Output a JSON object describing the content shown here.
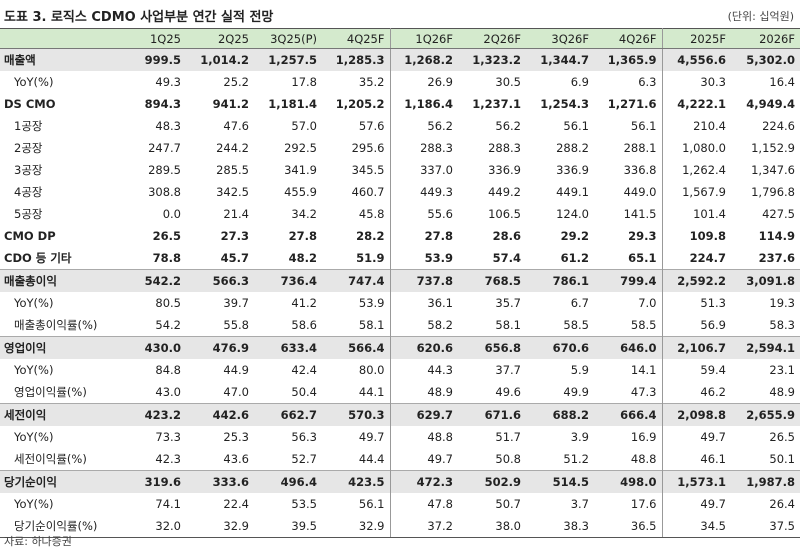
{
  "header": {
    "title": "도표 3. 로직스 CDMO 사업부분 연간 실적 전망",
    "unit": "(단위: 십억원)"
  },
  "table": {
    "columns": [
      "1Q25",
      "2Q25",
      "3Q25(P)",
      "4Q25F",
      "1Q26F",
      "2Q26F",
      "3Q26F",
      "4Q26F",
      "2025F",
      "2026F"
    ],
    "shaded_rows": [
      0,
      10,
      13,
      16,
      19
    ],
    "indented_rows": [
      1,
      3,
      4,
      5,
      6,
      7,
      11,
      12,
      14,
      15,
      17,
      18,
      20,
      21
    ],
    "rows": [
      {
        "label": "매출액",
        "values": [
          "999.5",
          "1,014.2",
          "1,257.5",
          "1,285.3",
          "1,268.2",
          "1,323.2",
          "1,344.7",
          "1,365.9",
          "4,556.6",
          "5,302.0"
        ]
      },
      {
        "label": "YoY(%)",
        "values": [
          "49.3",
          "25.2",
          "17.8",
          "35.2",
          "26.9",
          "30.5",
          "6.9",
          "6.3",
          "30.3",
          "16.4"
        ]
      },
      {
        "label": "DS CMO",
        "values": [
          "894.3",
          "941.2",
          "1,181.4",
          "1,205.2",
          "1,186.4",
          "1,237.1",
          "1,254.3",
          "1,271.6",
          "4,222.1",
          "4,949.4"
        ]
      },
      {
        "label": "1공장",
        "values": [
          "48.3",
          "47.6",
          "57.0",
          "57.6",
          "56.2",
          "56.2",
          "56.1",
          "56.1",
          "210.4",
          "224.6"
        ]
      },
      {
        "label": "2공장",
        "values": [
          "247.7",
          "244.2",
          "292.5",
          "295.6",
          "288.3",
          "288.3",
          "288.2",
          "288.1",
          "1,080.0",
          "1,152.9"
        ]
      },
      {
        "label": "3공장",
        "values": [
          "289.5",
          "285.5",
          "341.9",
          "345.5",
          "337.0",
          "336.9",
          "336.9",
          "336.8",
          "1,262.4",
          "1,347.6"
        ]
      },
      {
        "label": "4공장",
        "values": [
          "308.8",
          "342.5",
          "455.9",
          "460.7",
          "449.3",
          "449.2",
          "449.1",
          "449.0",
          "1,567.9",
          "1,796.8"
        ]
      },
      {
        "label": "5공장",
        "values": [
          "0.0",
          "21.4",
          "34.2",
          "45.8",
          "55.6",
          "106.5",
          "124.0",
          "141.5",
          "101.4",
          "427.5"
        ]
      },
      {
        "label": "CMO DP",
        "values": [
          "26.5",
          "27.3",
          "27.8",
          "28.2",
          "27.8",
          "28.6",
          "29.2",
          "29.3",
          "109.8",
          "114.9"
        ]
      },
      {
        "label": "CDO 등 기타",
        "values": [
          "78.8",
          "45.7",
          "48.2",
          "51.9",
          "53.9",
          "57.4",
          "61.2",
          "65.1",
          "224.7",
          "237.6"
        ]
      },
      {
        "label": "매출총이익",
        "values": [
          "542.2",
          "566.3",
          "736.4",
          "747.4",
          "737.8",
          "768.5",
          "786.1",
          "799.4",
          "2,592.2",
          "3,091.8"
        ]
      },
      {
        "label": "YoY(%)",
        "values": [
          "80.5",
          "39.7",
          "41.2",
          "53.9",
          "36.1",
          "35.7",
          "6.7",
          "7.0",
          "51.3",
          "19.3"
        ]
      },
      {
        "label": "매출총이익률(%)",
        "values": [
          "54.2",
          "55.8",
          "58.6",
          "58.1",
          "58.2",
          "58.1",
          "58.5",
          "58.5",
          "56.9",
          "58.3"
        ]
      },
      {
        "label": "영업이익",
        "values": [
          "430.0",
          "476.9",
          "633.4",
          "566.4",
          "620.6",
          "656.8",
          "670.6",
          "646.0",
          "2,106.7",
          "2,594.1"
        ]
      },
      {
        "label": "YoY(%)",
        "values": [
          "84.8",
          "44.9",
          "42.4",
          "80.0",
          "44.3",
          "37.7",
          "5.9",
          "14.1",
          "59.4",
          "23.1"
        ]
      },
      {
        "label": "영업이익률(%)",
        "values": [
          "43.0",
          "47.0",
          "50.4",
          "44.1",
          "48.9",
          "49.6",
          "49.9",
          "47.3",
          "46.2",
          "48.9"
        ]
      },
      {
        "label": "세전이익",
        "values": [
          "423.2",
          "442.6",
          "662.7",
          "570.3",
          "629.7",
          "671.6",
          "688.2",
          "666.4",
          "2,098.8",
          "2,655.9"
        ]
      },
      {
        "label": "YoY(%)",
        "values": [
          "73.3",
          "25.3",
          "56.3",
          "49.7",
          "48.8",
          "51.7",
          "3.9",
          "16.9",
          "49.7",
          "26.5"
        ]
      },
      {
        "label": "세전이익률(%)",
        "values": [
          "42.3",
          "43.6",
          "52.7",
          "44.4",
          "49.7",
          "50.8",
          "51.2",
          "48.8",
          "46.1",
          "50.1"
        ]
      },
      {
        "label": "당기순이익",
        "values": [
          "319.6",
          "333.6",
          "496.4",
          "423.5",
          "472.3",
          "502.9",
          "514.5",
          "498.0",
          "1,573.1",
          "1,987.8"
        ]
      },
      {
        "label": "YoY(%)",
        "values": [
          "74.1",
          "22.4",
          "53.5",
          "56.1",
          "47.8",
          "50.7",
          "3.7",
          "17.6",
          "49.7",
          "26.4"
        ]
      },
      {
        "label": "당기순이익률(%)",
        "values": [
          "32.0",
          "32.9",
          "39.5",
          "32.9",
          "37.2",
          "38.0",
          "38.3",
          "36.5",
          "34.5",
          "37.5"
        ]
      }
    ]
  },
  "footer": {
    "source": "자료: 하나증권"
  }
}
